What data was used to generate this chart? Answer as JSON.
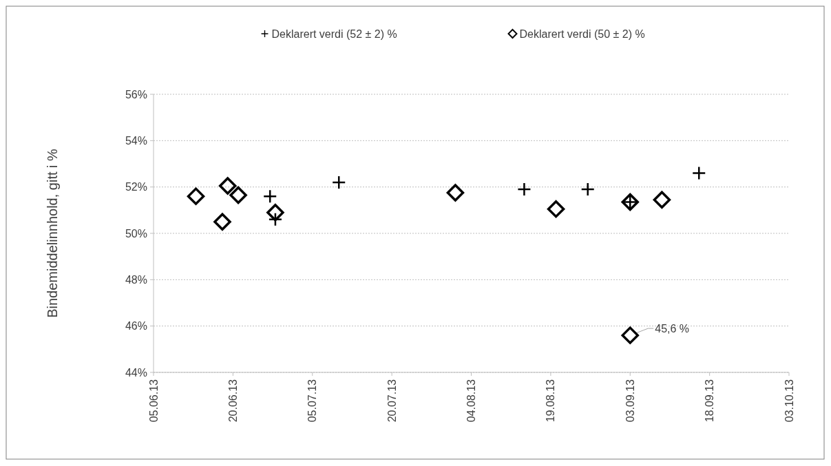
{
  "chart_data": {
    "type": "scatter",
    "ylabel": "Bindemiddelinnhold, gitt i %",
    "xlim": [
      "2013-06-05",
      "2013-10-03"
    ],
    "xticks": [
      {
        "value": "2013-06-05",
        "label": "05.06.13"
      },
      {
        "value": "2013-06-20",
        "label": "20.06.13"
      },
      {
        "value": "2013-07-05",
        "label": "05.07.13"
      },
      {
        "value": "2013-07-20",
        "label": "20.07.13"
      },
      {
        "value": "2013-08-04",
        "label": "04.08.13"
      },
      {
        "value": "2013-08-19",
        "label": "19.08.13"
      },
      {
        "value": "2013-09-03",
        "label": "03.09.13"
      },
      {
        "value": "2013-09-18",
        "label": "18.09.13"
      },
      {
        "value": "2013-10-03",
        "label": "03.10.13"
      }
    ],
    "ylim": [
      44,
      56
    ],
    "yticks": [
      {
        "value": 44,
        "label": "44%"
      },
      {
        "value": 46,
        "label": "46%"
      },
      {
        "value": 48,
        "label": "48%"
      },
      {
        "value": 50,
        "label": "50%"
      },
      {
        "value": 52,
        "label": "52%"
      },
      {
        "value": 54,
        "label": "54%"
      },
      {
        "value": 56,
        "label": "56%"
      }
    ],
    "grid": "y",
    "legend": "top",
    "series": [
      {
        "name": "Deklarert verdi (52 ± 2) %",
        "color": "#000000",
        "marker": "cross",
        "x": [
          "2013-06-27",
          "2013-06-28",
          "2013-07-10",
          "2013-08-14",
          "2013-08-26",
          "2013-09-03",
          "2013-09-16"
        ],
        "values": [
          51.6,
          50.6,
          52.2,
          51.9,
          51.9,
          51.35,
          52.6
        ]
      },
      {
        "name": "Deklarert verdi (50 ± 2) %",
        "color": "#000000",
        "marker": "diamond",
        "x": [
          "2013-06-13",
          "2013-06-18",
          "2013-06-19",
          "2013-06-21",
          "2013-06-28",
          "2013-08-01",
          "2013-08-20",
          "2013-09-03",
          "2013-09-09",
          "2013-09-03"
        ],
        "values": [
          51.6,
          50.5,
          52.05,
          51.65,
          50.9,
          51.75,
          51.05,
          51.35,
          51.45,
          45.6
        ]
      }
    ],
    "annotations": [
      {
        "text": "45,6 %",
        "x": "2013-09-03",
        "y": 45.6
      }
    ]
  }
}
